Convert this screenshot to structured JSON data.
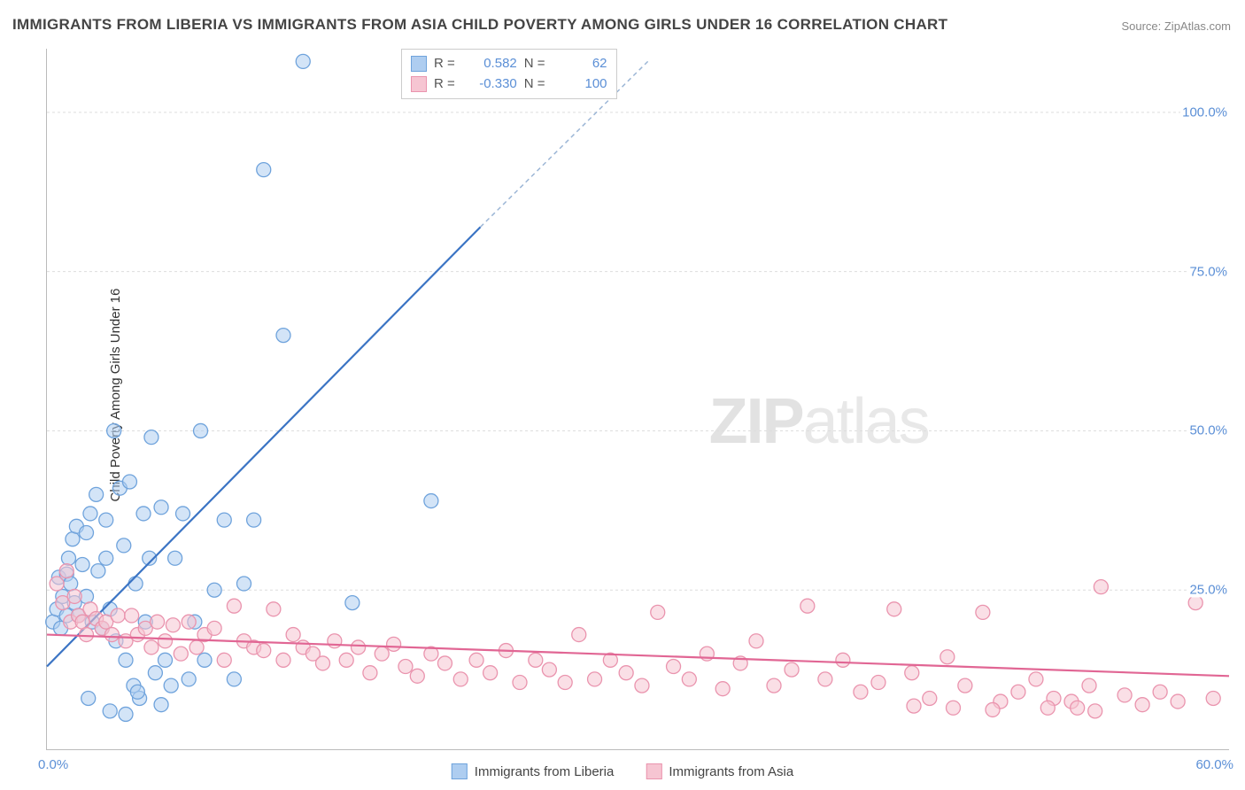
{
  "title": "IMMIGRANTS FROM LIBERIA VS IMMIGRANTS FROM ASIA CHILD POVERTY AMONG GIRLS UNDER 16 CORRELATION CHART",
  "source": "Source: ZipAtlas.com",
  "watermark_zip": "ZIP",
  "watermark_atlas": "atlas",
  "y_axis_label": "Child Poverty Among Girls Under 16",
  "chart": {
    "type": "scatter",
    "xlim": [
      0,
      60
    ],
    "ylim": [
      0,
      110
    ],
    "x_ticks": [
      {
        "pos": 0,
        "label": "0.0%"
      },
      {
        "pos": 60,
        "label": "60.0%"
      }
    ],
    "y_ticks": [
      {
        "pos": 25,
        "label": "25.0%"
      },
      {
        "pos": 50,
        "label": "50.0%"
      },
      {
        "pos": 75,
        "label": "75.0%"
      },
      {
        "pos": 100,
        "label": "100.0%"
      }
    ],
    "background_color": "#ffffff",
    "grid_color": "#dddddd",
    "grid_dash": "3 3",
    "marker_radius": 8,
    "marker_opacity": 0.55,
    "series": [
      {
        "name": "Immigrants from Liberia",
        "legend_label": "Immigrants from Liberia",
        "fill": "#aecdf0",
        "stroke": "#6fa3dc",
        "line_color": "#3b74c4",
        "line_dash_color": "#9cb6d6",
        "trend": {
          "x1": 0,
          "y1": 13,
          "x2_solid": 22,
          "y2_solid": 82,
          "x2_dash": 30.5,
          "y2_dash": 108
        },
        "stats": {
          "R_label": "R =",
          "R": "0.582",
          "N_label": "N =",
          "N": "62"
        },
        "points": [
          [
            0.3,
            20
          ],
          [
            0.5,
            22
          ],
          [
            0.6,
            27
          ],
          [
            0.7,
            19
          ],
          [
            0.8,
            24
          ],
          [
            1.0,
            27.5
          ],
          [
            1.0,
            21
          ],
          [
            1.1,
            30
          ],
          [
            1.2,
            26
          ],
          [
            1.3,
            33
          ],
          [
            1.4,
            23
          ],
          [
            1.5,
            35
          ],
          [
            1.6,
            21
          ],
          [
            1.8,
            29
          ],
          [
            2.0,
            34
          ],
          [
            2.0,
            24
          ],
          [
            2.2,
            37
          ],
          [
            2.3,
            20
          ],
          [
            2.5,
            40
          ],
          [
            2.6,
            28
          ],
          [
            2.8,
            19
          ],
          [
            3.0,
            36
          ],
          [
            3.0,
            30
          ],
          [
            3.2,
            22
          ],
          [
            3.4,
            50
          ],
          [
            3.5,
            17
          ],
          [
            3.7,
            41
          ],
          [
            3.9,
            32
          ],
          [
            4.0,
            14
          ],
          [
            4.2,
            42
          ],
          [
            4.4,
            10
          ],
          [
            4.5,
            26
          ],
          [
            4.7,
            8
          ],
          [
            4.9,
            37
          ],
          [
            5.0,
            20
          ],
          [
            5.2,
            30
          ],
          [
            5.3,
            49
          ],
          [
            5.5,
            12
          ],
          [
            5.8,
            38
          ],
          [
            6.0,
            14
          ],
          [
            6.3,
            10
          ],
          [
            6.5,
            30
          ],
          [
            6.9,
            37
          ],
          [
            7.2,
            11
          ],
          [
            7.5,
            20
          ],
          [
            7.8,
            50
          ],
          [
            8.0,
            14
          ],
          [
            8.5,
            25
          ],
          [
            9.0,
            36
          ],
          [
            9.5,
            11
          ],
          [
            10.0,
            26
          ],
          [
            10.5,
            36
          ],
          [
            11.0,
            91
          ],
          [
            12.0,
            65
          ],
          [
            13.0,
            108
          ],
          [
            15.5,
            23
          ],
          [
            19.5,
            39
          ],
          [
            5.8,
            7
          ],
          [
            4.0,
            5.5
          ],
          [
            3.2,
            6
          ],
          [
            4.6,
            9
          ],
          [
            2.1,
            8
          ]
        ]
      },
      {
        "name": "Immigrants from Asia",
        "legend_label": "Immigrants from Asia",
        "fill": "#f6c5d2",
        "stroke": "#ea94ae",
        "line_color": "#e16694",
        "trend": {
          "x1": 0,
          "y1": 18,
          "x2_solid": 60,
          "y2_solid": 11.5
        },
        "stats": {
          "R_label": "R =",
          "R": "-0.330",
          "N_label": "N =",
          "N": "100"
        },
        "points": [
          [
            0.5,
            26
          ],
          [
            0.8,
            23
          ],
          [
            1.0,
            28
          ],
          [
            1.2,
            20
          ],
          [
            1.4,
            24
          ],
          [
            1.6,
            21
          ],
          [
            1.8,
            20
          ],
          [
            2.0,
            18
          ],
          [
            2.2,
            22
          ],
          [
            2.5,
            20.5
          ],
          [
            2.8,
            19
          ],
          [
            3.0,
            20
          ],
          [
            3.3,
            18
          ],
          [
            3.6,
            21
          ],
          [
            4.0,
            17
          ],
          [
            4.3,
            21
          ],
          [
            4.6,
            18
          ],
          [
            5.0,
            19
          ],
          [
            5.3,
            16
          ],
          [
            5.6,
            20
          ],
          [
            6.0,
            17
          ],
          [
            6.4,
            19.5
          ],
          [
            6.8,
            15
          ],
          [
            7.2,
            20
          ],
          [
            7.6,
            16
          ],
          [
            8.0,
            18
          ],
          [
            8.5,
            19
          ],
          [
            9.0,
            14
          ],
          [
            9.5,
            22.5
          ],
          [
            10.0,
            17
          ],
          [
            10.5,
            16
          ],
          [
            11.0,
            15.5
          ],
          [
            11.5,
            22
          ],
          [
            12.0,
            14
          ],
          [
            12.5,
            18
          ],
          [
            13.0,
            16
          ],
          [
            13.5,
            15
          ],
          [
            14.0,
            13.5
          ],
          [
            14.6,
            17
          ],
          [
            15.2,
            14
          ],
          [
            15.8,
            16
          ],
          [
            16.4,
            12
          ],
          [
            17.0,
            15
          ],
          [
            17.6,
            16.5
          ],
          [
            18.2,
            13
          ],
          [
            18.8,
            11.5
          ],
          [
            19.5,
            15
          ],
          [
            20.2,
            13.5
          ],
          [
            21.0,
            11
          ],
          [
            21.8,
            14
          ],
          [
            22.5,
            12
          ],
          [
            23.3,
            15.5
          ],
          [
            24.0,
            10.5
          ],
          [
            24.8,
            14
          ],
          [
            25.5,
            12.5
          ],
          [
            26.3,
            10.5
          ],
          [
            27.0,
            18
          ],
          [
            27.8,
            11
          ],
          [
            28.6,
            14
          ],
          [
            29.4,
            12
          ],
          [
            30.2,
            10
          ],
          [
            31.0,
            21.5
          ],
          [
            31.8,
            13
          ],
          [
            32.6,
            11
          ],
          [
            33.5,
            15
          ],
          [
            34.3,
            9.5
          ],
          [
            35.2,
            13.5
          ],
          [
            36.0,
            17
          ],
          [
            36.9,
            10
          ],
          [
            37.8,
            12.5
          ],
          [
            38.6,
            22.5
          ],
          [
            39.5,
            11
          ],
          [
            40.4,
            14
          ],
          [
            41.3,
            9
          ],
          [
            42.2,
            10.5
          ],
          [
            43.0,
            22
          ],
          [
            43.9,
            12
          ],
          [
            44.8,
            8
          ],
          [
            45.7,
            14.5
          ],
          [
            46.6,
            10
          ],
          [
            47.5,
            21.5
          ],
          [
            48.4,
            7.5
          ],
          [
            49.3,
            9
          ],
          [
            50.2,
            11
          ],
          [
            51.1,
            8
          ],
          [
            52.0,
            7.5
          ],
          [
            52.9,
            10
          ],
          [
            53.5,
            25.5
          ],
          [
            54.7,
            8.5
          ],
          [
            55.6,
            7
          ],
          [
            56.5,
            9
          ],
          [
            57.4,
            7.5
          ],
          [
            58.3,
            23
          ],
          [
            59.2,
            8
          ],
          [
            46.0,
            6.5
          ],
          [
            50.8,
            6.5
          ],
          [
            52.3,
            6.5
          ],
          [
            53.2,
            6.0
          ],
          [
            48.0,
            6.2
          ],
          [
            44.0,
            6.8
          ]
        ]
      }
    ]
  },
  "legend": {
    "item1": "Immigrants from Liberia",
    "item2": "Immigrants from Asia"
  }
}
